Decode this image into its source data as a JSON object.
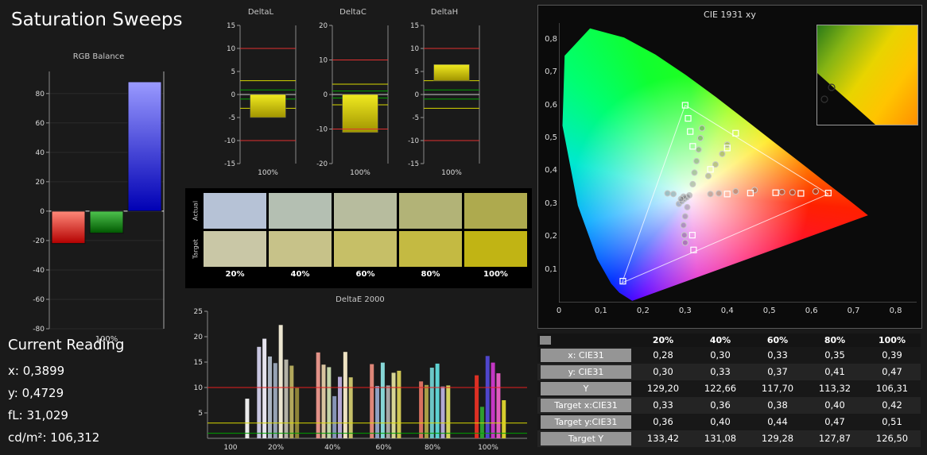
{
  "title": "Saturation Sweeps",
  "current_reading": {
    "title": "Current Reading",
    "lines": [
      {
        "label": "x:",
        "value": "0,3899"
      },
      {
        "label": "y:",
        "value": "0,4729"
      },
      {
        "label": "fL:",
        "value": "31,029"
      },
      {
        "label": "cd/m²:",
        "value": "106,312"
      }
    ]
  },
  "chart_data": {
    "rgb_balance": {
      "type": "bar",
      "title": "RGB Balance",
      "categories": [
        "Red",
        "Green",
        "Blue"
      ],
      "values": [
        -22,
        -15,
        88
      ],
      "colors": [
        "#e00000",
        "#00a000",
        "#2020ff"
      ],
      "ylim": [
        -80,
        95
      ],
      "yticks": [
        80,
        60,
        40,
        20,
        0,
        -20,
        -40,
        -60,
        -80
      ],
      "xlabel": "100%"
    },
    "delta_charts": [
      {
        "type": "bar",
        "title": "DeltaL",
        "ylim": [
          -15,
          15
        ],
        "yticks": [
          15,
          10,
          5,
          0,
          -5,
          -10,
          -15
        ],
        "bar": [
          -5,
          0
        ],
        "red_limits": [
          10,
          -10
        ],
        "yellow_limits": [
          3,
          -3
        ],
        "green_limits": [
          1,
          -1
        ],
        "xlabel": "100%"
      },
      {
        "type": "bar",
        "title": "DeltaC",
        "ylim": [
          -20,
          20
        ],
        "yticks": [
          20,
          10,
          0,
          -10,
          -20
        ],
        "bar": [
          -11,
          0
        ],
        "red_limits": [
          10,
          -10
        ],
        "yellow_limits": [
          3,
          -3
        ],
        "green_limits": [
          1,
          -1
        ],
        "xlabel": "100%"
      },
      {
        "type": "bar",
        "title": "DeltaH",
        "ylim": [
          -15,
          15
        ],
        "yticks": [
          15,
          10,
          5,
          0,
          -5,
          -10,
          -15
        ],
        "bar": [
          3,
          6.5
        ],
        "red_limits": [
          10,
          -10
        ],
        "yellow_limits": [
          3,
          -3
        ],
        "green_limits": [
          1,
          -1
        ],
        "xlabel": "100%"
      }
    ],
    "saturation_swatches": {
      "type": "table",
      "row_labels": [
        "Actual",
        "Target"
      ],
      "col_labels": [
        "20%",
        "40%",
        "60%",
        "80%",
        "100%"
      ],
      "actual_colors": [
        "#b6c2d6",
        "#b4bfb2",
        "#b7bc9e",
        "#b2b377",
        "#aeaa4e"
      ],
      "target_colors": [
        "#c9c7a6",
        "#c7c289",
        "#c6bf67",
        "#c4ba42",
        "#c1b414"
      ]
    },
    "deltae2000": {
      "type": "bar",
      "title": "DeltaE 2000",
      "ylim": [
        0,
        25
      ],
      "yticks": [
        25,
        20,
        15,
        10,
        5
      ],
      "limit_lines": [
        {
          "value": 1,
          "color": "#00a000"
        },
        {
          "value": 3,
          "color": "#d8d800"
        },
        {
          "value": 10,
          "color": "#e62020"
        }
      ],
      "x_labels": [
        {
          "text": "100",
          "p": 0.072
        },
        {
          "text": "20%",
          "p": 0.214
        },
        {
          "text": "40%",
          "p": 0.391
        },
        {
          "text": "60%",
          "p": 0.551
        },
        {
          "text": "80%",
          "p": 0.704
        },
        {
          "text": "100%",
          "p": 0.878
        }
      ],
      "bars": [
        {
          "p": 0.118,
          "v": 7.8,
          "c": "#ececec"
        },
        {
          "p": 0.155,
          "v": 18.0,
          "c": "#c8c6e0"
        },
        {
          "p": 0.172,
          "v": 19.6,
          "c": "#e6e4ee"
        },
        {
          "p": 0.189,
          "v": 16.1,
          "c": "#aab4c2"
        },
        {
          "p": 0.206,
          "v": 14.8,
          "c": "#96a2b4"
        },
        {
          "p": 0.223,
          "v": 22.3,
          "c": "#ece6d0"
        },
        {
          "p": 0.24,
          "v": 15.5,
          "c": "#b4b2a6"
        },
        {
          "p": 0.257,
          "v": 14.3,
          "c": "#b2a85c"
        },
        {
          "p": 0.274,
          "v": 9.9,
          "c": "#8e8438"
        },
        {
          "p": 0.34,
          "v": 16.9,
          "c": "#e29288"
        },
        {
          "p": 0.357,
          "v": 14.5,
          "c": "#d8c4a0"
        },
        {
          "p": 0.374,
          "v": 14.0,
          "c": "#c2d4a8"
        },
        {
          "p": 0.391,
          "v": 8.3,
          "c": "#8694b6"
        },
        {
          "p": 0.408,
          "v": 12.1,
          "c": "#b4a6d4"
        },
        {
          "p": 0.425,
          "v": 17.0,
          "c": "#eee2c2"
        },
        {
          "p": 0.442,
          "v": 12.0,
          "c": "#c6c06a"
        },
        {
          "p": 0.508,
          "v": 14.6,
          "c": "#de8678"
        },
        {
          "p": 0.525,
          "v": 10.3,
          "c": "#8ea0c2"
        },
        {
          "p": 0.542,
          "v": 14.9,
          "c": "#86d6d6"
        },
        {
          "p": 0.559,
          "v": 10.4,
          "c": "#a6a6a6"
        },
        {
          "p": 0.576,
          "v": 12.9,
          "c": "#d8d694"
        },
        {
          "p": 0.593,
          "v": 13.3,
          "c": "#cfc654"
        },
        {
          "p": 0.662,
          "v": 11.2,
          "c": "#d87060"
        },
        {
          "p": 0.679,
          "v": 10.5,
          "c": "#a89e46"
        },
        {
          "p": 0.696,
          "v": 13.9,
          "c": "#6cc6c6"
        },
        {
          "p": 0.713,
          "v": 14.7,
          "c": "#5ed2d2"
        },
        {
          "p": 0.73,
          "v": 10.2,
          "c": "#b0a8d2"
        },
        {
          "p": 0.747,
          "v": 10.4,
          "c": "#d2d25e"
        },
        {
          "p": 0.836,
          "v": 12.4,
          "c": "#dc3024"
        },
        {
          "p": 0.853,
          "v": 6.2,
          "c": "#2f9e2f"
        },
        {
          "p": 0.87,
          "v": 16.2,
          "c": "#4f46cc"
        },
        {
          "p": 0.887,
          "v": 14.9,
          "c": "#c436c4"
        },
        {
          "p": 0.904,
          "v": 12.8,
          "c": "#e05cbe"
        },
        {
          "p": 0.921,
          "v": 7.5,
          "c": "#d6cc2e"
        }
      ]
    },
    "cie1931": {
      "type": "scatter",
      "title": "CIE 1931 xy",
      "xlim": [
        0,
        0.85
      ],
      "ylim": [
        0,
        0.85
      ],
      "x_ticks": [
        {
          "v": 0,
          "label": "0"
        },
        {
          "v": 0.1,
          "label": "0,1"
        },
        {
          "v": 0.2,
          "label": "0,2"
        },
        {
          "v": 0.3,
          "label": "0,3"
        },
        {
          "v": 0.4,
          "label": "0,4"
        },
        {
          "v": 0.5,
          "label": "0,5"
        },
        {
          "v": 0.6,
          "label": "0,6"
        },
        {
          "v": 0.7,
          "label": "0,7"
        },
        {
          "v": 0.8,
          "label": "0,8"
        }
      ],
      "y_ticks": [
        {
          "v": 0.1,
          "label": "0,1"
        },
        {
          "v": 0.2,
          "label": "0,2"
        },
        {
          "v": 0.3,
          "label": "0,3"
        },
        {
          "v": 0.4,
          "label": "0,4"
        },
        {
          "v": 0.5,
          "label": "0,5"
        },
        {
          "v": 0.6,
          "label": "0,6"
        },
        {
          "v": 0.7,
          "label": "0,7"
        },
        {
          "v": 0.8,
          "label": "0,8"
        }
      ],
      "gamut_triangle": [
        [
          0.64,
          0.33
        ],
        [
          0.3,
          0.6
        ],
        [
          0.15,
          0.06
        ]
      ],
      "target_squares": [
        [
          0.4,
          0.33
        ],
        [
          0.455,
          0.333
        ],
        [
          0.515,
          0.334
        ],
        [
          0.575,
          0.332
        ],
        [
          0.64,
          0.333
        ],
        [
          0.3,
          0.6
        ],
        [
          0.307,
          0.56
        ],
        [
          0.312,
          0.52
        ],
        [
          0.318,
          0.475
        ],
        [
          0.42,
          0.515
        ],
        [
          0.4,
          0.47
        ],
        [
          0.36,
          0.405
        ],
        [
          0.32,
          0.16
        ],
        [
          0.317,
          0.205
        ],
        [
          0.152,
          0.065
        ]
      ],
      "measured_circles": [
        [
          0.36,
          0.33
        ],
        [
          0.38,
          0.332
        ],
        [
          0.42,
          0.338
        ],
        [
          0.465,
          0.342
        ],
        [
          0.53,
          0.336
        ],
        [
          0.555,
          0.335
        ],
        [
          0.61,
          0.338
        ],
        [
          0.318,
          0.36
        ],
        [
          0.322,
          0.395
        ],
        [
          0.327,
          0.43
        ],
        [
          0.332,
          0.465
        ],
        [
          0.336,
          0.5
        ],
        [
          0.34,
          0.53
        ],
        [
          0.355,
          0.385
        ],
        [
          0.372,
          0.42
        ],
        [
          0.388,
          0.452
        ],
        [
          0.4,
          0.48
        ],
        [
          0.305,
          0.29
        ],
        [
          0.3,
          0.262
        ],
        [
          0.296,
          0.235
        ],
        [
          0.298,
          0.205
        ],
        [
          0.3,
          0.182
        ],
        [
          0.285,
          0.3
        ],
        [
          0.292,
          0.308
        ],
        [
          0.298,
          0.315
        ],
        [
          0.304,
          0.32
        ],
        [
          0.31,
          0.326
        ],
        [
          0.296,
          0.322
        ],
        [
          0.29,
          0.315
        ],
        [
          0.272,
          0.33
        ],
        [
          0.258,
          0.332
        ]
      ]
    }
  },
  "results_table": {
    "col_headers": [
      "20%",
      "40%",
      "60%",
      "80%",
      "100%"
    ],
    "rows": [
      {
        "label": "x: CIE31",
        "values": [
          "0,28",
          "0,30",
          "0,33",
          "0,35",
          "0,39"
        ]
      },
      {
        "label": "y: CIE31",
        "values": [
          "0,30",
          "0,33",
          "0,37",
          "0,41",
          "0,47"
        ]
      },
      {
        "label": "Y",
        "values": [
          "129,20",
          "122,66",
          "117,70",
          "113,32",
          "106,31"
        ]
      },
      {
        "label": "Target x:CIE31",
        "values": [
          "0,33",
          "0,36",
          "0,38",
          "0,40",
          "0,42"
        ]
      },
      {
        "label": "Target y:CIE31",
        "values": [
          "0,36",
          "0,40",
          "0,44",
          "0,47",
          "0,51"
        ]
      },
      {
        "label": "Target Y",
        "values": [
          "133,42",
          "131,08",
          "129,28",
          "127,87",
          "126,50"
        ]
      }
    ]
  }
}
